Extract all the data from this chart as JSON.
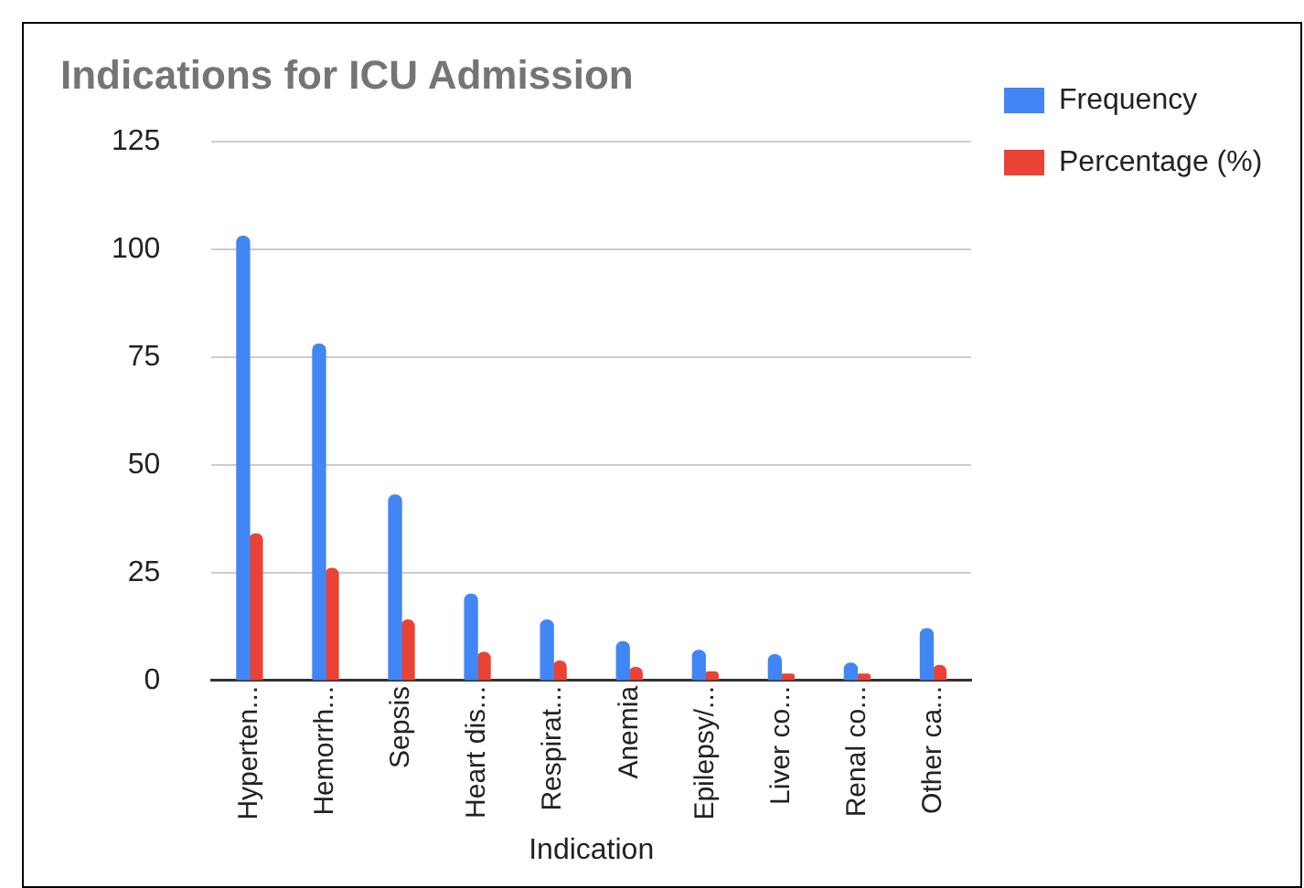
{
  "chart_data": {
    "type": "bar",
    "title": "Indications for ICU Admission",
    "xlabel": "Indication",
    "categories": [
      "Hyperten...",
      "Hemorrh...",
      "Sepsis",
      "Heart dis...",
      "Respirat...",
      "Anemia",
      "Epilepsy/...",
      "Liver co...",
      "Renal co...",
      "Other ca..."
    ],
    "series": [
      {
        "name": "Frequency",
        "color": "#4285f4",
        "values": [
          103,
          78,
          43,
          20,
          14,
          9,
          7,
          6,
          4,
          12
        ]
      },
      {
        "name": "Percentage (%)",
        "color": "#ea4335",
        "values": [
          34,
          26,
          14,
          6.5,
          4.5,
          3,
          2,
          1.5,
          1.5,
          3.5
        ]
      }
    ],
    "ylim": [
      0,
      125
    ],
    "yticks": [
      0,
      25,
      50,
      75,
      100,
      125
    ],
    "grid": "y",
    "legend": "right"
  }
}
